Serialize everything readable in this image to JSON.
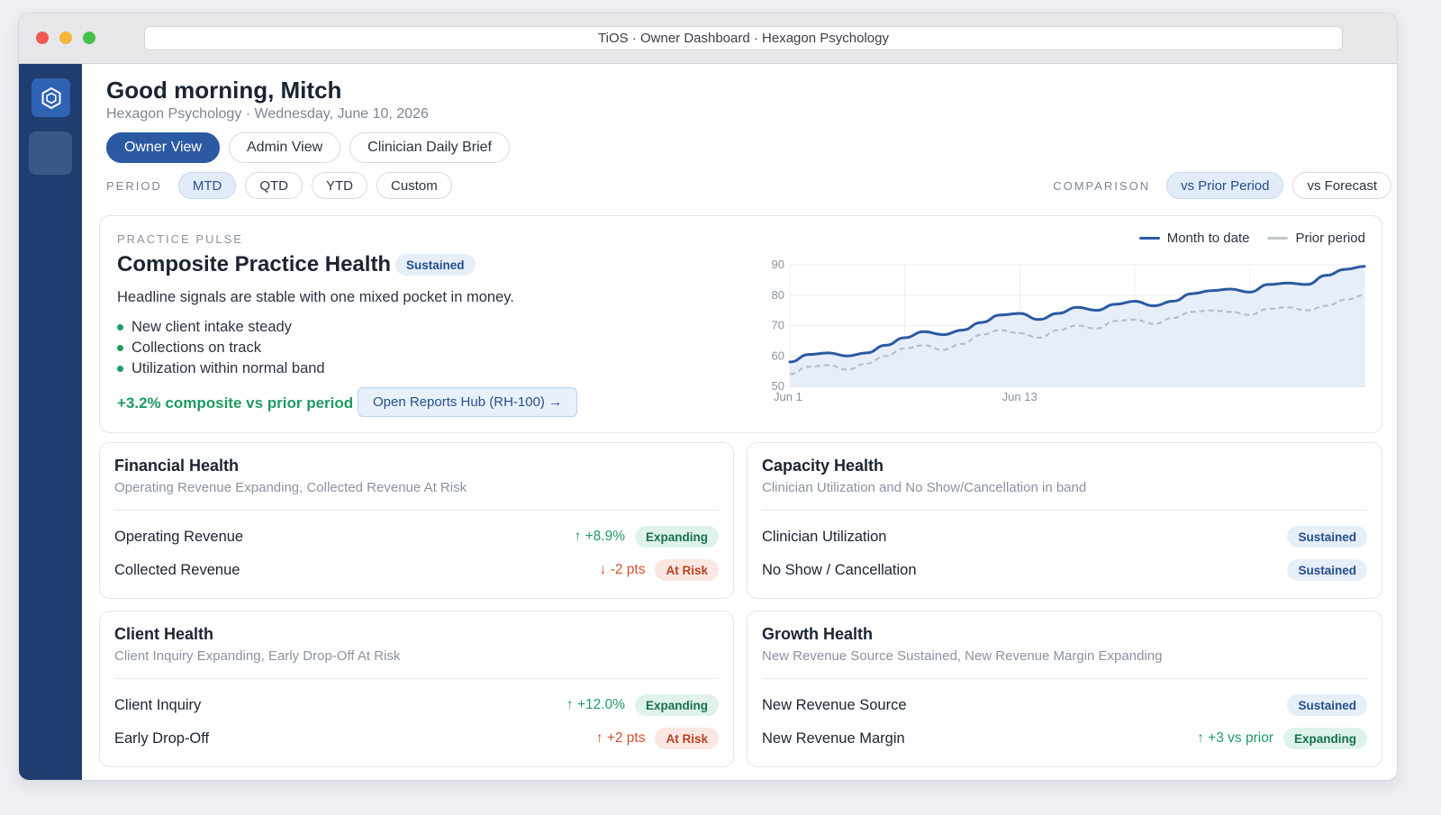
{
  "window": {
    "title": "TiOS · Owner Dashboard · Hexagon Psychology"
  },
  "sidebar": {
    "logo_icon": "hexagon-logo-icon"
  },
  "header": {
    "greeting": "Good morning, Mitch",
    "subtitle": "Hexagon Psychology · Wednesday, June 10, 2026"
  },
  "views": [
    "Owner View",
    "Admin View",
    "Clinician Daily Brief"
  ],
  "period": {
    "label": "PERIOD",
    "options": [
      "MTD",
      "QTD",
      "YTD",
      "Custom"
    ],
    "selected": "MTD"
  },
  "comparison": {
    "label": "COMPARISON",
    "options": [
      "vs Prior Period",
      "vs Forecast"
    ],
    "selected": "vs Prior Period"
  },
  "pulse": {
    "eyebrow": "PRACTICE PULSE",
    "title": "Composite Practice Health",
    "badge": "Sustained",
    "description": "Headline signals are stable with one mixed pocket in money.",
    "bullets": [
      "New client intake steady",
      "Collections on track",
      "Utilization within normal band"
    ],
    "composite": "+3.2% composite vs prior period",
    "hub_button": "Open Reports Hub (RH-100) →"
  },
  "colors": {
    "accent": "#2b5aa3",
    "sidebar": "#1f3d6e",
    "expanding": "#1f9b63",
    "at_risk": "#d0512c",
    "prior_line": "#b8bec8"
  },
  "chart_data": {
    "type": "line",
    "ylim": [
      50,
      90
    ],
    "yticks": [
      "90",
      "80",
      "70",
      "60",
      "50"
    ],
    "xlabels": [
      "Jun 1",
      "Jun 13"
    ],
    "legend_position": "top-right",
    "series": [
      {
        "name": "Month to date",
        "values": [
          58,
          60.5,
          61,
          60,
          61,
          63.5,
          66,
          68,
          67,
          68.5,
          71,
          73.5,
          74,
          72,
          74,
          76,
          75,
          77,
          78,
          76.5,
          78,
          80.5,
          81.5,
          82,
          81,
          83.5,
          84,
          83.5,
          86.5,
          88.5,
          89.5
        ]
      },
      {
        "name": "Prior period",
        "values": [
          54,
          56.5,
          57,
          55.5,
          57.5,
          60,
          62.5,
          63.5,
          62,
          64,
          67,
          68.5,
          67.5,
          66,
          68.5,
          70,
          69,
          71.5,
          72,
          70.5,
          72.5,
          74.5,
          75,
          74.5,
          73.5,
          75.5,
          76,
          75,
          76.5,
          78.5,
          80
        ]
      }
    ]
  },
  "health_cards": [
    {
      "title": "Financial Health",
      "subtitle": "Operating Revenue Expanding, Collected Revenue At Risk",
      "metrics": [
        {
          "label": "Operating Revenue",
          "delta": "↑ +8.9%",
          "direction": "up",
          "status": "Expanding"
        },
        {
          "label": "Collected Revenue",
          "delta": "↓ -2 pts",
          "direction": "down",
          "status": "At Risk"
        }
      ]
    },
    {
      "title": "Capacity Health",
      "subtitle": "Clinician Utilization and No Show/Cancellation in band",
      "metrics": [
        {
          "label": "Clinician Utilization",
          "delta": "",
          "direction": "",
          "status": "Sustained"
        },
        {
          "label": "No Show / Cancellation",
          "delta": "",
          "direction": "",
          "status": "Sustained"
        }
      ]
    },
    {
      "title": "Client Health",
      "subtitle": "Client Inquiry Expanding, Early Drop-Off At Risk",
      "metrics": [
        {
          "label": "Client Inquiry",
          "delta": "↑ +12.0%",
          "direction": "up",
          "status": "Expanding"
        },
        {
          "label": "Early Drop-Off",
          "delta": "↑ +2 pts",
          "direction": "down",
          "status": "At Risk"
        }
      ]
    },
    {
      "title": "Growth Health",
      "subtitle": "New Revenue Source Sustained, New Revenue Margin Expanding",
      "metrics": [
        {
          "label": "New Revenue Source",
          "delta": "",
          "direction": "",
          "status": "Sustained"
        },
        {
          "label": "New Revenue Margin",
          "delta": "↑ +3 vs prior",
          "direction": "up",
          "status": "Expanding"
        }
      ]
    }
  ]
}
